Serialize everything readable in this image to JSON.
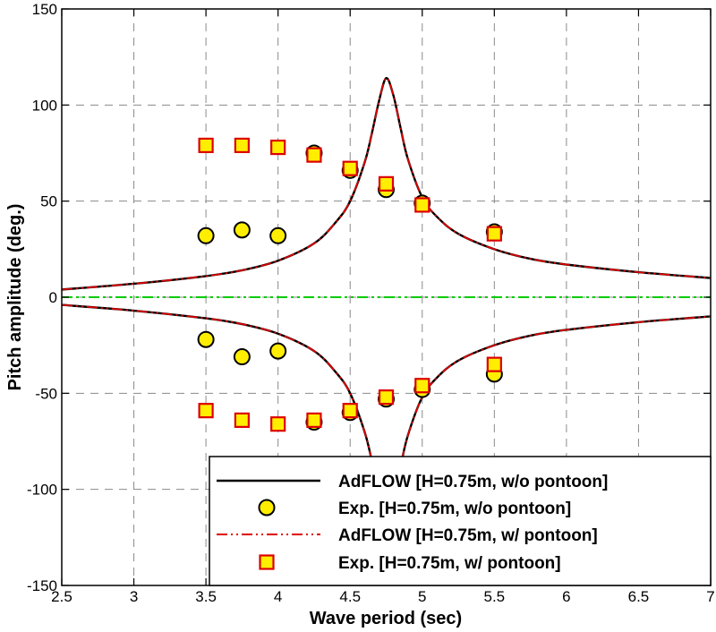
{
  "chart_data": {
    "type": "line",
    "title": "",
    "xlabel": "Wave period (sec)",
    "ylabel": "Pitch amplitude (deg.)",
    "xlim": [
      2.5,
      7
    ],
    "ylim": [
      -150,
      150
    ],
    "xticks": [
      2.5,
      3,
      3.5,
      4,
      4.5,
      5,
      5.5,
      6,
      6.5,
      7
    ],
    "xtick_labels": [
      "2.5",
      "3",
      "3.5",
      "4",
      "4.5",
      "5",
      "5.5",
      "6",
      "6.5",
      "7"
    ],
    "yticks": [
      -150,
      -100,
      -50,
      0,
      50,
      100,
      150
    ],
    "ytick_labels": [
      "-150",
      "-100",
      "-50",
      "0",
      "50",
      "100",
      "150"
    ],
    "grid": true,
    "legend_position": "bottom-right",
    "zero_line_color": "#00cc00",
    "series": [
      {
        "name": "AdFLOW [H=0.75m, w/o pontoon]",
        "kind": "line",
        "style": "solid",
        "color": "#000000",
        "x": [
          2.5,
          3.0,
          3.5,
          3.75,
          4.0,
          4.25,
          4.4,
          4.5,
          4.6,
          4.65,
          4.7,
          4.75,
          4.8,
          4.85,
          4.9,
          5.0,
          5.1,
          5.25,
          5.5,
          5.75,
          6.0,
          6.5,
          7.0
        ],
        "y_upper": [
          4,
          7,
          11,
          14,
          19,
          28,
          39,
          50,
          70,
          85,
          102,
          114,
          105,
          88,
          72,
          52,
          42,
          33,
          25,
          20,
          17,
          13,
          10
        ],
        "y_lower": [
          -4,
          -7,
          -11,
          -14,
          -19,
          -28,
          -39,
          -50,
          -70,
          -85,
          -102,
          -114,
          -105,
          -88,
          -72,
          -52,
          -42,
          -33,
          -25,
          -20,
          -17,
          -13,
          -10
        ]
      },
      {
        "name": "Exp. [H=0.75m, w/o pontoon]",
        "kind": "marker",
        "marker": "circle",
        "fill": "#ffee00",
        "edge": "#000000",
        "x": [
          3.5,
          3.75,
          4.0,
          4.25,
          4.5,
          4.75,
          5.0,
          5.5
        ],
        "y_upper": [
          32,
          35,
          32,
          75,
          66,
          56,
          49,
          34
        ],
        "y_lower": [
          -22,
          -31,
          -28,
          -65,
          -60,
          -53,
          -48,
          -40
        ]
      },
      {
        "name": "AdFLOW [H=0.75m, w/ pontoon]",
        "kind": "line",
        "style": "dash-dot-dot",
        "color": "#dd0000",
        "x": [
          2.5,
          3.0,
          3.5,
          3.75,
          4.0,
          4.25,
          4.4,
          4.5,
          4.6,
          4.65,
          4.7,
          4.75,
          4.8,
          4.85,
          4.9,
          5.0,
          5.1,
          5.25,
          5.5,
          5.75,
          6.0,
          6.5,
          7.0
        ],
        "y_upper": [
          4,
          7,
          11,
          14,
          19,
          28,
          39,
          50,
          70,
          85,
          102,
          114,
          105,
          88,
          72,
          52,
          42,
          33,
          25,
          20,
          17,
          13,
          10
        ],
        "y_lower": [
          -4,
          -7,
          -11,
          -14,
          -19,
          -28,
          -39,
          -50,
          -70,
          -85,
          -102,
          -114,
          -105,
          -88,
          -72,
          -52,
          -42,
          -33,
          -25,
          -20,
          -17,
          -13,
          -10
        ]
      },
      {
        "name": "Exp. [H=0.75m, w/ pontoon]",
        "kind": "marker",
        "marker": "square",
        "fill": "#ffee00",
        "edge": "#dd0000",
        "x": [
          3.5,
          3.75,
          4.0,
          4.25,
          4.5,
          4.75,
          5.0,
          5.5
        ],
        "y_upper": [
          79,
          79,
          78,
          74,
          67,
          59,
          48,
          33
        ],
        "y_lower": [
          -59,
          -64,
          -66,
          -64,
          -59,
          -52,
          -46,
          -35
        ]
      }
    ]
  }
}
